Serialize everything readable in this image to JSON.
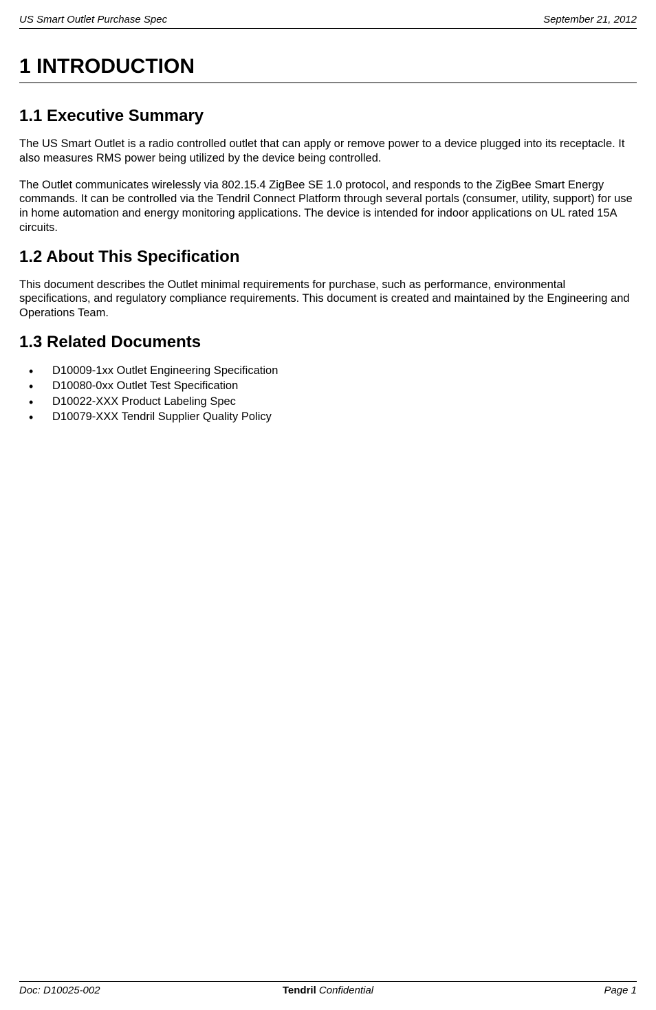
{
  "header": {
    "left": "US Smart Outlet Purchase Spec",
    "right": "September 21, 2012"
  },
  "sections": {
    "h1": "1   INTRODUCTION",
    "s1_1": {
      "title": "1.1   Executive Summary",
      "p1": "The US Smart Outlet is a radio controlled outlet that can apply or remove power to a device plugged into its receptacle.  It also measures RMS power being utilized by the device being controlled.",
      "p2": "The Outlet communicates wirelessly via 802.15.4 ZigBee SE 1.0 protocol, and responds to the ZigBee Smart Energy commands.  It can be controlled via the Tendril Connect Platform through several portals (consumer, utility, support) for use in home automation and energy monitoring applications. The device is intended for indoor applications on UL rated 15A circuits."
    },
    "s1_2": {
      "title": "1.2   About This Specification",
      "p1": "This document describes the Outlet minimal requirements for purchase, such as performance, environmental specifications, and regulatory compliance requirements.  This document is created and maintained by the Engineering and Operations Team."
    },
    "s1_3": {
      "title": "1.3   Related Documents",
      "bullets": [
        "D10009-1xx Outlet Engineering Specification",
        "D10080-0xx Outlet Test Specification",
        "D10022-XXX Product Labeling Spec",
        "D10079-XXX Tendril Supplier Quality Policy"
      ]
    }
  },
  "footer": {
    "left": "Doc:  D10025-002",
    "center_bold": "Tendril",
    "center_rest": " Confidential",
    "right": "Page 1"
  }
}
